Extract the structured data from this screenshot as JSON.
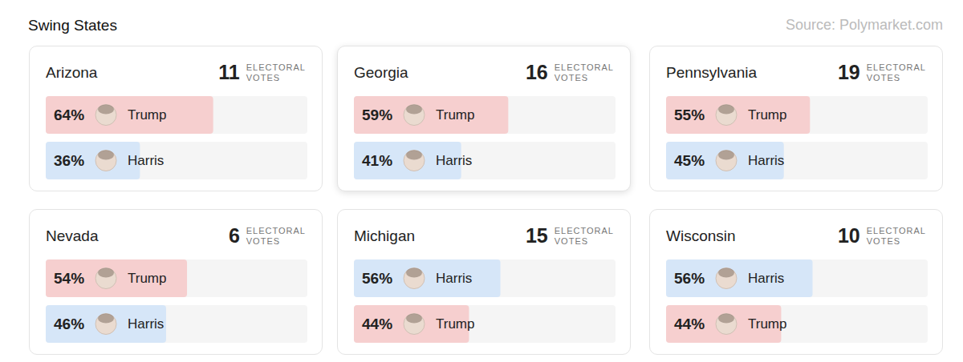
{
  "title": "Swing States",
  "source": "Source: Polymarket.com",
  "chart_data": [
    {
      "type": "bar",
      "orientation": "horizontal",
      "title": "Arizona",
      "electoral_votes": 11,
      "electoral_votes_label": "ELECTORAL VOTES",
      "categories": [
        "Trump",
        "Harris"
      ],
      "values": [
        64,
        36
      ],
      "value_labels": [
        "64%",
        "36%"
      ],
      "colors": [
        "#f6cfcf",
        "#d6e6f8"
      ],
      "xlim": [
        0,
        100
      ],
      "data_labels": true,
      "tick_labels": false
    },
    {
      "type": "bar",
      "orientation": "horizontal",
      "title": "Georgia",
      "electoral_votes": 16,
      "electoral_votes_label": "ELECTORAL VOTES",
      "categories": [
        "Trump",
        "Harris"
      ],
      "values": [
        59,
        41
      ],
      "value_labels": [
        "59%",
        "41%"
      ],
      "colors": [
        "#f6cfcf",
        "#d6e6f8"
      ],
      "xlim": [
        0,
        100
      ],
      "data_labels": true,
      "tick_labels": false
    },
    {
      "type": "bar",
      "orientation": "horizontal",
      "title": "Pennsylvania",
      "electoral_votes": 19,
      "electoral_votes_label": "ELECTORAL VOTES",
      "categories": [
        "Trump",
        "Harris"
      ],
      "values": [
        55,
        45
      ],
      "value_labels": [
        "55%",
        "45%"
      ],
      "colors": [
        "#f6cfcf",
        "#d6e6f8"
      ],
      "xlim": [
        0,
        100
      ],
      "data_labels": true,
      "tick_labels": false
    },
    {
      "type": "bar",
      "orientation": "horizontal",
      "title": "Nevada",
      "electoral_votes": 6,
      "electoral_votes_label": "ELECTORAL VOTES",
      "categories": [
        "Trump",
        "Harris"
      ],
      "values": [
        54,
        46
      ],
      "value_labels": [
        "54%",
        "46%"
      ],
      "colors": [
        "#f6cfcf",
        "#d6e6f8"
      ],
      "xlim": [
        0,
        100
      ],
      "data_labels": true,
      "tick_labels": false
    },
    {
      "type": "bar",
      "orientation": "horizontal",
      "title": "Michigan",
      "electoral_votes": 15,
      "electoral_votes_label": "ELECTORAL VOTES",
      "categories": [
        "Harris",
        "Trump"
      ],
      "values": [
        56,
        44
      ],
      "value_labels": [
        "56%",
        "44%"
      ],
      "colors": [
        "#d6e6f8",
        "#f6cfcf"
      ],
      "xlim": [
        0,
        100
      ],
      "data_labels": true,
      "tick_labels": false
    },
    {
      "type": "bar",
      "orientation": "horizontal",
      "title": "Wisconsin",
      "electoral_votes": 10,
      "electoral_votes_label": "ELECTORAL VOTES",
      "categories": [
        "Harris",
        "Trump"
      ],
      "values": [
        56,
        44
      ],
      "value_labels": [
        "56%",
        "44%"
      ],
      "colors": [
        "#d6e6f8",
        "#f6cfcf"
      ],
      "xlim": [
        0,
        100
      ],
      "data_labels": true,
      "tick_labels": false
    }
  ]
}
